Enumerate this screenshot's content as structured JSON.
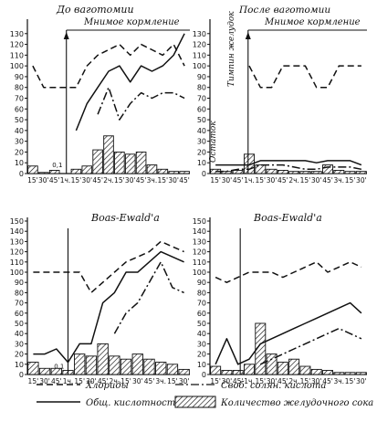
{
  "chart_data": [
    {
      "type": "line",
      "title": "До ваготомии",
      "subtitle": "Мнимое кормление",
      "bracket_label": "",
      "x": [
        "15'",
        "30'",
        "45'",
        "1ч.",
        "15'",
        "30'",
        "45'",
        "2ч.",
        "15'",
        "30'",
        "45'",
        "3ч.",
        "15'",
        "30'",
        "45'"
      ],
      "ylim": [
        0,
        140
      ],
      "yticks": [
        0,
        10,
        20,
        30,
        40,
        50,
        60,
        70,
        80,
        90,
        100,
        110,
        120,
        130
      ],
      "feed_start_index": 3.6,
      "annotations": [
        "0,1"
      ],
      "series": [
        {
          "name": "Хлориды",
          "style": "dashed",
          "values": [
            100,
            80,
            80,
            80,
            80,
            100,
            110,
            115,
            120,
            110,
            120,
            115,
            110,
            120,
            100
          ]
        },
        {
          "name": "Общ. кислотность",
          "style": "solid",
          "values": [
            null,
            null,
            null,
            null,
            40,
            65,
            80,
            95,
            100,
            85,
            100,
            95,
            100,
            110,
            130
          ]
        },
        {
          "name": "Своб. солян. кислота",
          "style": "dashdot",
          "values": [
            null,
            null,
            null,
            null,
            null,
            null,
            55,
            80,
            50,
            65,
            75,
            70,
            75,
            75,
            70
          ]
        }
      ],
      "bars": {
        "name": "Количество желудочного сока",
        "values": [
          7,
          1,
          3,
          0,
          4,
          7,
          22,
          35,
          20,
          18,
          20,
          8,
          4,
          2,
          2
        ]
      }
    },
    {
      "type": "line",
      "title": "После ваготомии",
      "subtitle": "Мнимое кормление",
      "bracket_label": "Тимпин желудок",
      "side_label": "Остаток",
      "x": [
        "15'",
        "30'",
        "45'",
        "1ч.",
        "15'",
        "30'",
        "45'",
        "2ч.",
        "15'",
        "30'",
        "45'",
        "3ч.",
        "15'",
        "30'"
      ],
      "ylim": [
        0,
        140
      ],
      "yticks": [
        0,
        10,
        20,
        30,
        40,
        50,
        60,
        70,
        80,
        90,
        100,
        110,
        120,
        130
      ],
      "feed_start_index": 3.4,
      "series": [
        {
          "name": "Хлориды",
          "style": "dashed",
          "values": [
            null,
            null,
            null,
            100,
            80,
            80,
            100,
            100,
            100,
            80,
            80,
            100,
            100,
            100
          ]
        },
        {
          "name": "Общ. кислотность",
          "style": "solid",
          "values": [
            8,
            8,
            8,
            8,
            12,
            12,
            12,
            12,
            12,
            10,
            12,
            12,
            12,
            8
          ]
        },
        {
          "name": "Своб. солян. кислота",
          "style": "dashdot",
          "values": [
            2,
            2,
            4,
            4,
            8,
            8,
            8,
            6,
            4,
            4,
            6,
            6,
            6,
            4
          ]
        }
      ],
      "bars": {
        "name": "Количество желудочного сока",
        "values": [
          4,
          2,
          3,
          18,
          8,
          4,
          3,
          2,
          2,
          2,
          8,
          3,
          2,
          2
        ]
      }
    },
    {
      "type": "line",
      "title": "Boas-Ewald'a",
      "subtitle": "",
      "x": [
        "15'",
        "30'",
        "45'",
        "1ч.",
        "15'",
        "30'",
        "45'",
        "2ч.",
        "15'",
        "30'",
        "45'",
        "3ч.",
        "15'",
        "30'"
      ],
      "ylim": [
        0,
        150
      ],
      "yticks": [
        0,
        10,
        20,
        30,
        40,
        50,
        60,
        70,
        80,
        90,
        100,
        110,
        120,
        130,
        140,
        150
      ],
      "feed_start_index": 3.5,
      "annotations": [
        "0,1"
      ],
      "series": [
        {
          "name": "Хлориды",
          "style": "dashed",
          "values": [
            100,
            100,
            100,
            100,
            100,
            80,
            90,
            100,
            110,
            115,
            120,
            130,
            125,
            120
          ]
        },
        {
          "name": "Общ. кислотность",
          "style": "solid",
          "values": [
            20,
            20,
            25,
            12,
            30,
            30,
            70,
            80,
            100,
            100,
            110,
            120,
            115,
            110
          ]
        },
        {
          "name": "Своб. солян. кислота",
          "style": "dashdot",
          "values": [
            null,
            null,
            null,
            null,
            null,
            null,
            null,
            40,
            60,
            70,
            90,
            110,
            85,
            80
          ]
        }
      ],
      "bars": {
        "name": "Количество желудочного сока",
        "values": [
          12,
          6,
          6,
          4,
          20,
          18,
          30,
          18,
          15,
          20,
          15,
          12,
          10,
          5
        ]
      }
    },
    {
      "type": "line",
      "title": "Boas-Ewald'a",
      "subtitle": "",
      "x": [
        "15'",
        "30'",
        "45'",
        "1ч.",
        "15'",
        "30'",
        "45'",
        "2ч.",
        "15'",
        "30'",
        "45'",
        "3ч.",
        "15'",
        "30'"
      ],
      "ylim": [
        0,
        150
      ],
      "yticks": [
        0,
        10,
        20,
        30,
        40,
        50,
        60,
        70,
        80,
        90,
        100,
        110,
        120,
        130,
        140,
        150
      ],
      "feed_start_index": 2.7,
      "series": [
        {
          "name": "Хлориды",
          "style": "dashed",
          "values": [
            95,
            90,
            95,
            100,
            100,
            100,
            95,
            100,
            105,
            110,
            100,
            105,
            110,
            105
          ]
        },
        {
          "name": "Общ. кислотность",
          "style": "solid",
          "values": [
            10,
            35,
            10,
            15,
            30,
            35,
            40,
            45,
            50,
            55,
            60,
            65,
            70,
            60
          ]
        },
        {
          "name": "Своб. солян. кислота",
          "style": "dashdot",
          "values": [
            null,
            null,
            null,
            null,
            10,
            15,
            20,
            25,
            30,
            35,
            40,
            45,
            40,
            35
          ]
        }
      ],
      "bars": {
        "name": "Количество желудочного сока",
        "values": [
          8,
          4,
          4,
          10,
          50,
          20,
          12,
          15,
          8,
          5,
          4,
          2,
          2,
          2
        ]
      }
    }
  ],
  "legend": [
    {
      "label": "Хлориды",
      "style": "dashed"
    },
    {
      "label": "Своб. солян. кислота",
      "style": "dashdot"
    },
    {
      "label": "Общ. кислотность",
      "style": "solid"
    },
    {
      "label": "Количество желудочного сока",
      "style": "hatched"
    }
  ],
  "colors": {
    "ink": "#111111",
    "background": "#ffffff"
  }
}
